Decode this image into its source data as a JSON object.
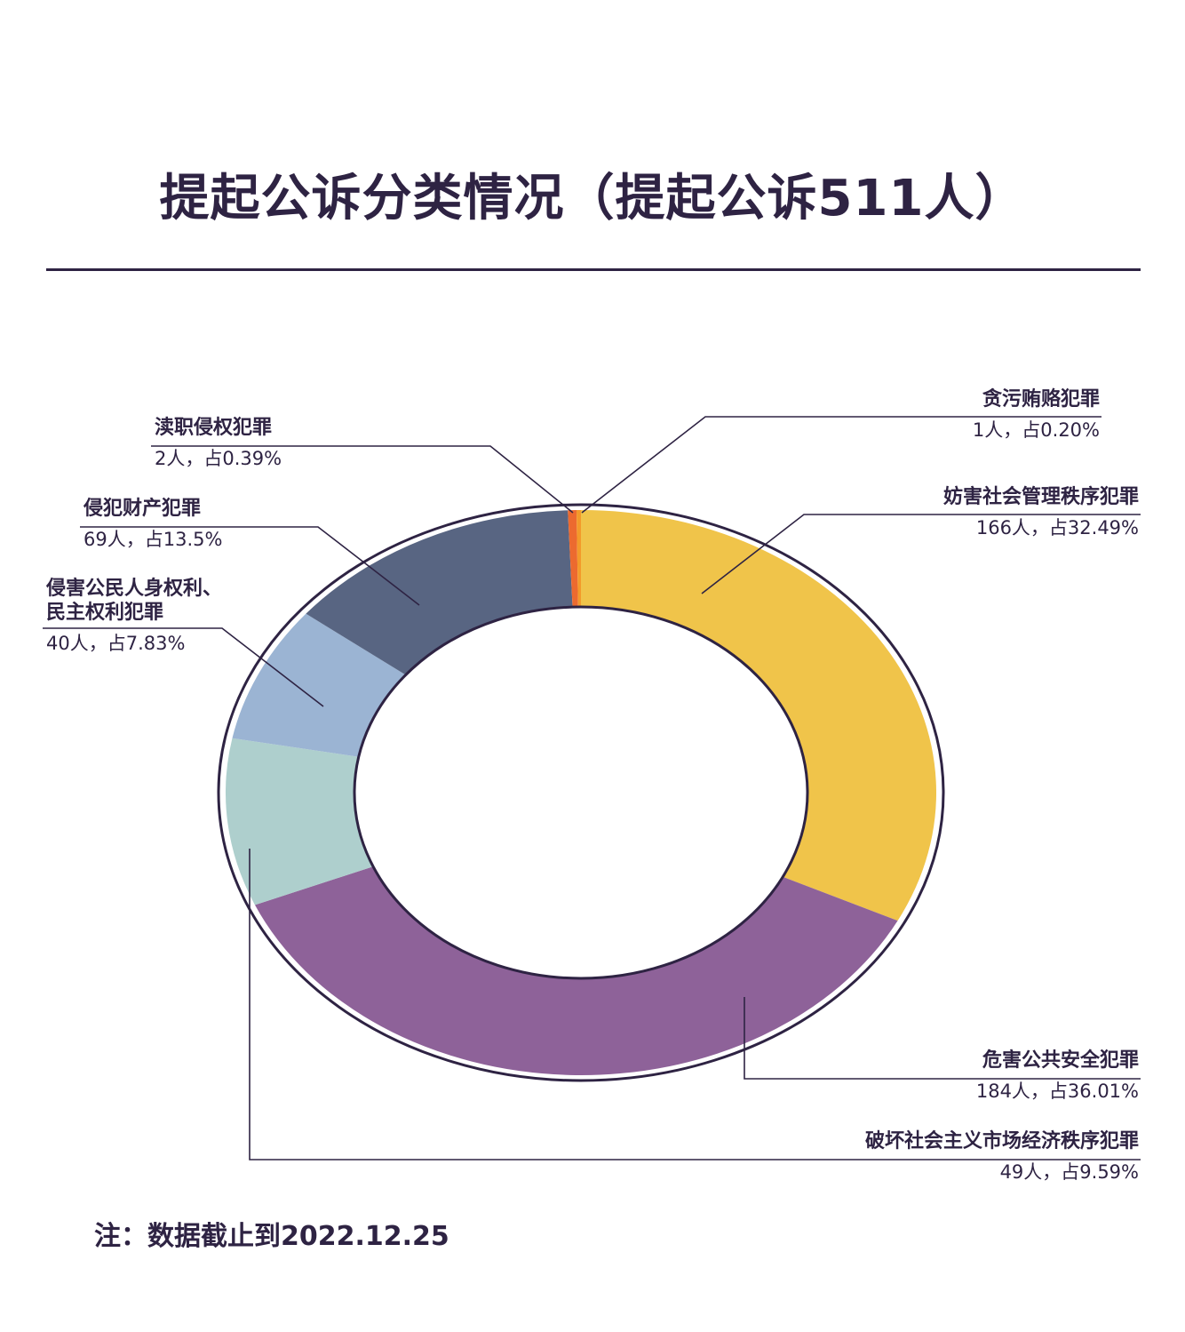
{
  "title": "提起公诉分类情况（提起公诉511人）",
  "note": "注：数据截止到2022.12.25",
  "colors": {
    "ink": "#2e2343",
    "yellow": "#f0c44a",
    "purple": "#8e6299",
    "teal": "#aecfcd",
    "lightblue": "#9bb4d3",
    "slate": "#586582",
    "orange": "#ec6a2f",
    "amber": "#f39a2a"
  },
  "chart_data": {
    "type": "pie",
    "style": "donut",
    "title": "提起公诉分类情况（提起公诉511人）",
    "total": 511,
    "slices": [
      {
        "name": "妨害社会管理秩序犯罪",
        "count": 166,
        "percent": 32.49,
        "value_label": "166人，占32.49%",
        "color": "#f0c44a"
      },
      {
        "name": "危害公共安全犯罪",
        "count": 184,
        "percent": 36.01,
        "value_label": "184人，占36.01%",
        "color": "#8e6299"
      },
      {
        "name": "破坏社会主义市场经济秩序犯罪",
        "count": 49,
        "percent": 9.59,
        "value_label": "49人，占9.59%",
        "color": "#aecfcd"
      },
      {
        "name": "侵害公民人身权利、民主权利犯罪",
        "name_lines": [
          "侵害公民人身权利、",
          "民主权利犯罪"
        ],
        "count": 40,
        "percent": 7.83,
        "value_label": "40人，占7.83%",
        "color": "#9bb4d3"
      },
      {
        "name": "侵犯财产犯罪",
        "count": 69,
        "percent": 13.5,
        "value_label": "69人，占13.5%",
        "color": "#586582"
      },
      {
        "name": "渎职侵权犯罪",
        "count": 2,
        "percent": 0.39,
        "value_label": "2人，占0.39%",
        "color": "#ec6a2f"
      },
      {
        "name": "贪污贿赂犯罪",
        "count": 1,
        "percent": 0.2,
        "value_label": "1人，占0.20%",
        "color": "#f39a2a"
      }
    ]
  }
}
